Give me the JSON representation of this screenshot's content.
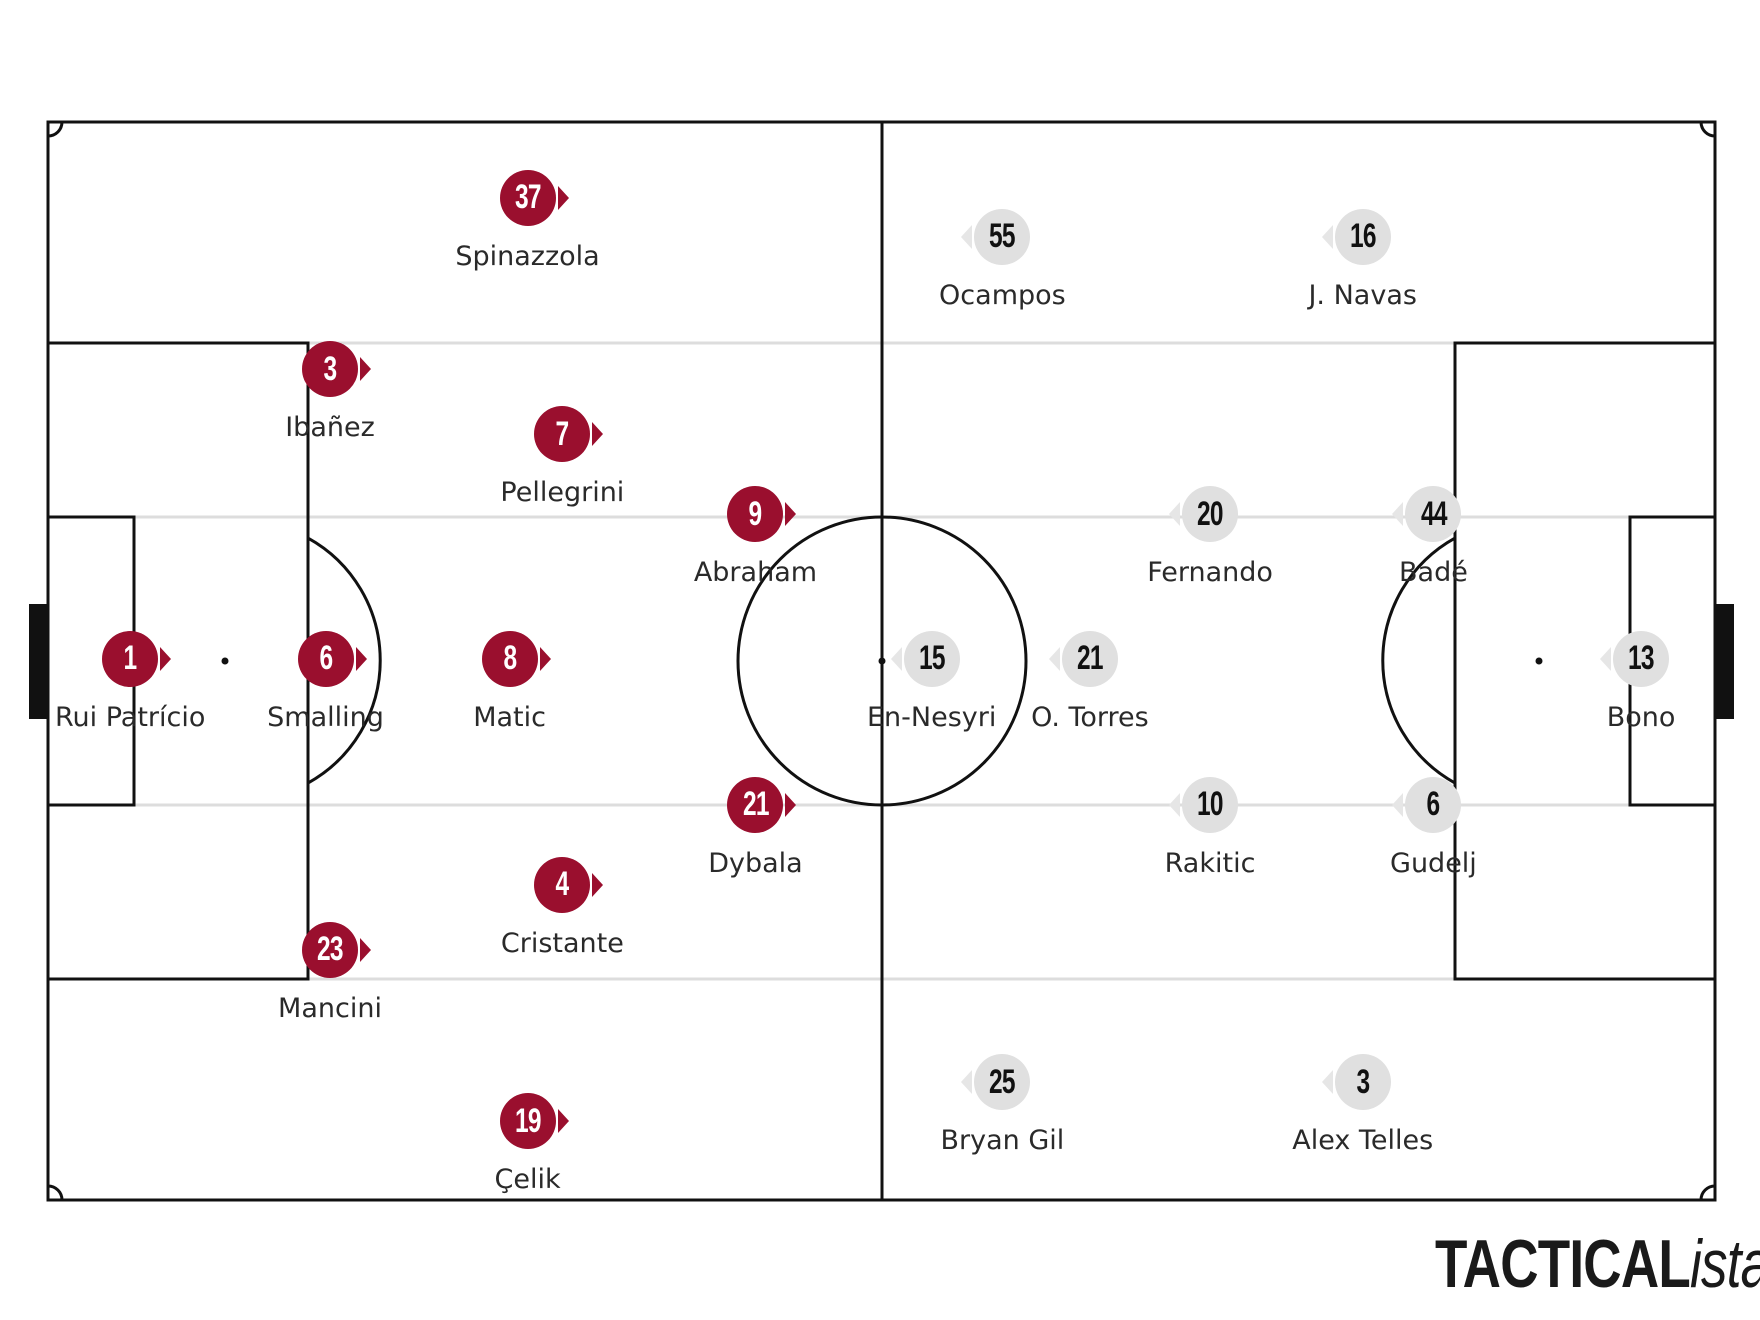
{
  "logo": {
    "bold": "TACTICAL",
    "italic": "ista"
  },
  "colors": {
    "home": "#9a0f2e",
    "away": "#e0e0e0",
    "lines": "#111111",
    "lanes": "#dddddd"
  },
  "home": {
    "attack_direction": "right",
    "players": [
      {
        "number": "37",
        "name": "Spinazzola"
      },
      {
        "number": "3",
        "name": "Ibañez"
      },
      {
        "number": "7",
        "name": "Pellegrini"
      },
      {
        "number": "9",
        "name": "Abraham"
      },
      {
        "number": "1",
        "name": "Rui Patrício"
      },
      {
        "number": "6",
        "name": "Smalling"
      },
      {
        "number": "8",
        "name": "Matic"
      },
      {
        "number": "21",
        "name": "Dybala"
      },
      {
        "number": "4",
        "name": "Cristante"
      },
      {
        "number": "23",
        "name": "Mancini"
      },
      {
        "number": "19",
        "name": "Çelik"
      }
    ]
  },
  "away": {
    "attack_direction": "left",
    "players": [
      {
        "number": "55",
        "name": "Ocampos"
      },
      {
        "number": "16",
        "name": "J. Navas"
      },
      {
        "number": "20",
        "name": "Fernando"
      },
      {
        "number": "44",
        "name": "Badé"
      },
      {
        "number": "15",
        "name": "En-Nesyri"
      },
      {
        "number": "21",
        "name": "O. Torres"
      },
      {
        "number": "13",
        "name": "Bono"
      },
      {
        "number": "10",
        "name": "Rakitic"
      },
      {
        "number": "6",
        "name": "Gudelj"
      },
      {
        "number": "25",
        "name": "Bryan Gil"
      },
      {
        "number": "3",
        "name": "Alex Telles"
      }
    ]
  }
}
